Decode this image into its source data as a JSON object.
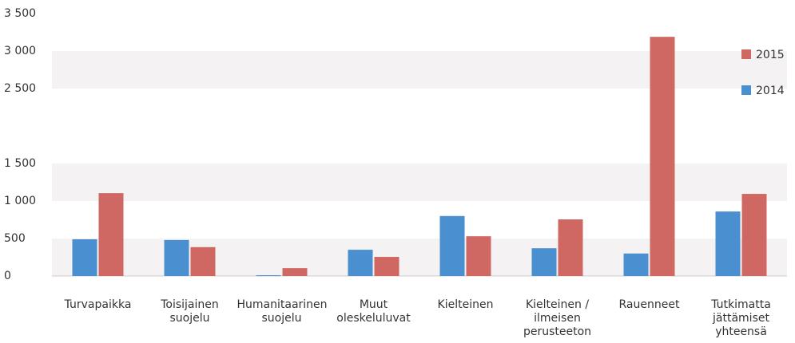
{
  "chart_data": {
    "type": "bar",
    "categories": [
      "Turvapaikka",
      "Toisijainen suojelu",
      "Humanitaarinen suojelu",
      "Muut oleskeluluvat",
      "Kielteinen",
      "Kielteinen / ilmeisen perusteeton",
      "Rauenneet",
      "Tutkimatta jättämiset yhteensä"
    ],
    "series": [
      {
        "name": "2014",
        "color": "#4a8fd0",
        "values": [
          490,
          480,
          10,
          350,
          800,
          370,
          300,
          860
        ]
      },
      {
        "name": "2015",
        "color": "#cf6862",
        "values": [
          1105,
          385,
          105,
          255,
          530,
          755,
          3190,
          1095
        ]
      }
    ],
    "ylim": [
      0,
      3500
    ],
    "yticks": [
      0,
      500,
      {
        "value": 1000,
        "label": "1 000"
      },
      {
        "value": 1500,
        "label": "1 500"
      },
      {
        "value": 2500,
        "label": "2 500"
      },
      {
        "value": 3000,
        "label": "3 000"
      },
      {
        "value": 3500,
        "label": "3 500"
      }
    ],
    "legend": "upper right"
  }
}
